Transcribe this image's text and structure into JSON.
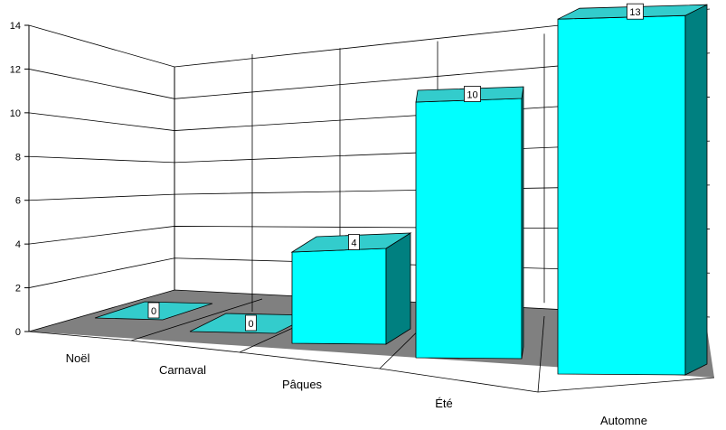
{
  "chart_data": {
    "type": "bar",
    "style": "3d-perspective",
    "categories": [
      "Noël",
      "Carnaval",
      "Pâques",
      "Été",
      "Automne"
    ],
    "values": [
      0,
      0,
      4,
      10,
      13
    ],
    "data_labels": [
      "0",
      "0",
      "4",
      "10",
      "13"
    ],
    "ylim": [
      0,
      14
    ],
    "yticks": [
      "0",
      "2",
      "4",
      "6",
      "8",
      "10",
      "12",
      "14"
    ],
    "grid": true,
    "legend": "none",
    "colors": {
      "bar_front": "#00ffff",
      "bar_top": "#33cccc",
      "bar_side": "#008080",
      "floor": "#808080",
      "grid": "#000000"
    }
  }
}
